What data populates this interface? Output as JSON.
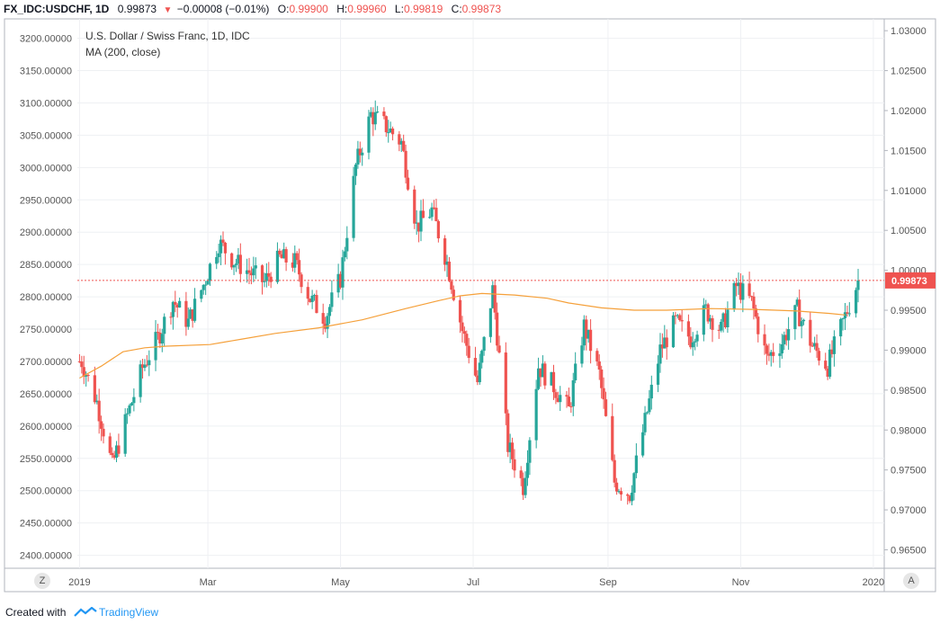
{
  "header": {
    "symbol": "FX_IDC:USDCHF, 1D",
    "last": "0.99873",
    "change": "−0.00008 (−0.01%)",
    "o_label": "O:",
    "o_value": "0.99900",
    "h_label": "H:",
    "h_value": "0.99960",
    "l_label": "L:",
    "l_value": "0.99819",
    "c_label": "C:",
    "c_value": "0.99873"
  },
  "legend": {
    "title": "U.S. Dollar / Swiss Franc, 1D, IDC",
    "ma": "MA (200, close)"
  },
  "footer": {
    "created_with": "Created with",
    "brand": "TradingView"
  },
  "buttons": {
    "z": "Z",
    "a": "A"
  },
  "colors": {
    "up": "#26a69a",
    "down": "#ef5350",
    "ma": "#f5a03a",
    "grid": "#eef0f3",
    "price_line": "#ef5350",
    "axis_text": "#555555"
  },
  "chart_data": {
    "type": "candlestick",
    "series_name": "U.S. Dollar / Swiss Franc, 1D, IDC",
    "left_axis": {
      "ticks": [
        "3200.00000",
        "3150.00000",
        "3100.00000",
        "3050.00000",
        "3000.00000",
        "2950.00000",
        "2900.00000",
        "2850.00000",
        "2800.00000",
        "2750.00000",
        "2700.00000",
        "2650.00000",
        "2600.00000",
        "2550.00000",
        "2500.00000",
        "2450.00000",
        "2400.00000"
      ],
      "ylim": [
        2380,
        3230
      ]
    },
    "right_axis": {
      "ticks": [
        "1.03000",
        "1.02500",
        "1.02000",
        "1.01500",
        "1.01000",
        "1.00500",
        "1.00000",
        "0.99500",
        "0.99000",
        "0.98500",
        "0.98000",
        "0.97500",
        "0.97000",
        "0.96500"
      ],
      "ylim": [
        0.96269,
        1.03148
      ]
    },
    "x_axis": {
      "ticks": [
        "2019",
        "Mar",
        "May",
        "Jul",
        "Sep",
        "Nov",
        "2020"
      ],
      "tick_days": [
        0,
        59,
        120,
        181,
        243,
        304,
        365
      ],
      "xlim": [
        -1,
        370
      ]
    },
    "last_price": 0.99873,
    "last_price_label": "0.99873",
    "weekly_close": [
      [
        1,
        0.9886
      ],
      [
        8,
        0.9835
      ],
      [
        15,
        0.9755
      ],
      [
        22,
        0.9818
      ],
      [
        29,
        0.9878
      ],
      [
        36,
        0.9915
      ],
      [
        43,
        0.9962
      ],
      [
        50,
        0.9935
      ],
      [
        57,
        0.9982
      ],
      [
        64,
        1.0035
      ],
      [
        71,
        1.0012
      ],
      [
        78,
        0.9998
      ],
      [
        85,
        0.9985
      ],
      [
        92,
        1.0015
      ],
      [
        99,
        1.001
      ],
      [
        106,
        0.9965
      ],
      [
        113,
        0.994
      ],
      [
        120,
        0.999
      ],
      [
        127,
        1.013
      ],
      [
        134,
        1.0195
      ],
      [
        141,
        1.018
      ],
      [
        148,
        1.016
      ],
      [
        155,
        1.0055
      ],
      [
        162,
        1.0075
      ],
      [
        169,
        1.001
      ],
      [
        176,
        0.9925
      ],
      [
        183,
        0.986
      ],
      [
        190,
        0.9975
      ],
      [
        197,
        0.978
      ],
      [
        204,
        0.973
      ],
      [
        211,
        0.988
      ],
      [
        218,
        0.9855
      ],
      [
        225,
        0.9825
      ],
      [
        232,
        0.993
      ],
      [
        239,
        0.987
      ],
      [
        246,
        0.9735
      ],
      [
        253,
        0.972
      ],
      [
        260,
        0.981
      ],
      [
        267,
        0.99
      ],
      [
        274,
        0.9935
      ],
      [
        281,
        0.9915
      ],
      [
        288,
        0.995
      ],
      [
        295,
        0.9925
      ],
      [
        302,
        0.998
      ],
      [
        309,
        0.996
      ],
      [
        316,
        0.989
      ],
      [
        323,
        0.991
      ],
      [
        330,
        0.995
      ],
      [
        337,
        0.9905
      ],
      [
        344,
        0.988
      ],
      [
        351,
        0.9935
      ],
      [
        358,
        0.9987
      ]
    ],
    "ma_points": [
      [
        0,
        0.9865
      ],
      [
        10,
        0.988
      ],
      [
        20,
        0.9898
      ],
      [
        30,
        0.9903
      ],
      [
        40,
        0.9905
      ],
      [
        60,
        0.9907
      ],
      [
        75,
        0.9914
      ],
      [
        90,
        0.9921
      ],
      [
        110,
        0.9928
      ],
      [
        130,
        0.9938
      ],
      [
        150,
        0.9952
      ],
      [
        165,
        0.9962
      ],
      [
        175,
        0.9968
      ],
      [
        185,
        0.9971
      ],
      [
        200,
        0.9969
      ],
      [
        215,
        0.9965
      ],
      [
        225,
        0.9959
      ],
      [
        240,
        0.9953
      ],
      [
        255,
        0.995
      ],
      [
        270,
        0.995
      ],
      [
        290,
        0.9952
      ],
      [
        310,
        0.9951
      ],
      [
        330,
        0.9949
      ],
      [
        345,
        0.9946
      ],
      [
        352,
        0.9944
      ]
    ]
  }
}
